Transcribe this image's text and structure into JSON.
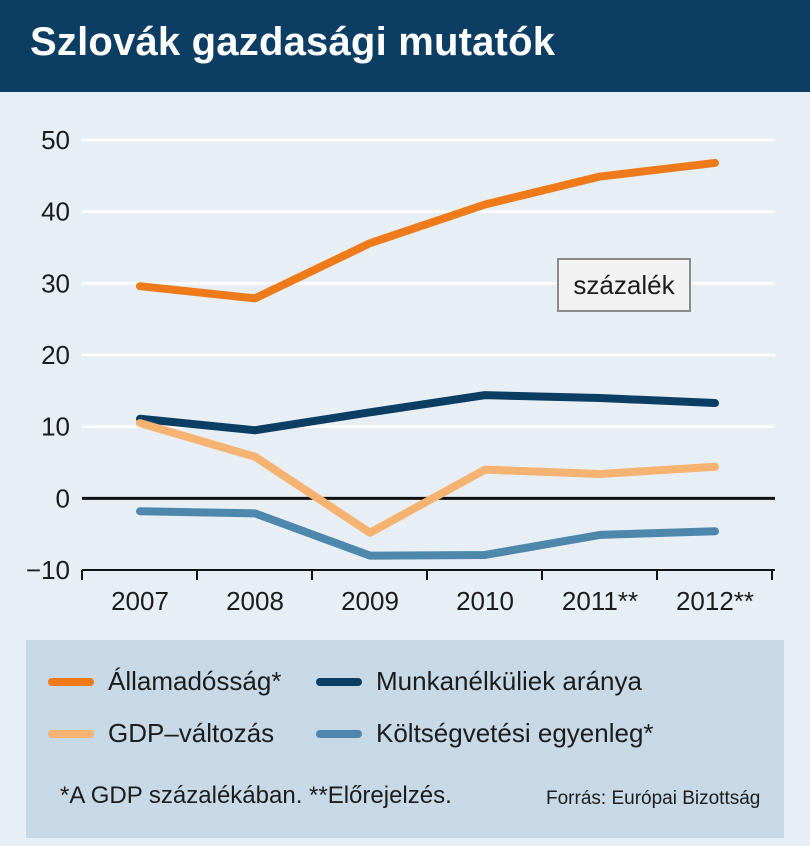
{
  "header": {
    "title": "Szlovák gazdasági mutatók"
  },
  "unit_label": "százalék",
  "chart_data": {
    "type": "line",
    "title": "Szlovák gazdasági mutatók",
    "unit": "százalék",
    "categories": [
      "2007",
      "2008",
      "2009",
      "2010",
      "2011**",
      "2012**"
    ],
    "ylim": [
      -10,
      50
    ],
    "yticks": [
      50,
      40,
      30,
      20,
      10,
      0,
      -10
    ],
    "ytick_labels": [
      "50",
      "40",
      "30",
      "20",
      "10",
      "0",
      "−10"
    ],
    "grid": true,
    "legend_position": "bottom",
    "series": [
      {
        "name": "Államadósság*",
        "color": "#ee7a1a",
        "values": [
          29.6,
          27.9,
          35.6,
          41.0,
          44.9,
          46.8
        ]
      },
      {
        "name": "Munkanélküliek aránya",
        "color": "#0c3d63",
        "values": [
          11.1,
          9.5,
          12.0,
          14.4,
          14.0,
          13.3
        ]
      },
      {
        "name": "GDP-változás",
        "color": "#f6b271",
        "values": [
          10.5,
          5.8,
          -4.8,
          4.0,
          3.4,
          4.4
        ]
      },
      {
        "name": "Költségvetési egyenleg*",
        "color": "#4d87ab",
        "values": [
          -1.8,
          -2.1,
          -8.0,
          -7.9,
          -5.1,
          -4.6
        ]
      }
    ]
  },
  "legend": {
    "items": [
      {
        "label": "Államadósság*",
        "color": "#ee7a1a"
      },
      {
        "label": "Munkanélküliek aránya",
        "color": "#0c3d63"
      },
      {
        "label": "GDP–változás",
        "color": "#f6b271"
      },
      {
        "label": "Költségvetési egyenleg*",
        "color": "#4d87ab"
      }
    ]
  },
  "footnote": "*A GDP százalékában. **Előrejelzés.",
  "source": "Forrás: Európai Bizottság"
}
